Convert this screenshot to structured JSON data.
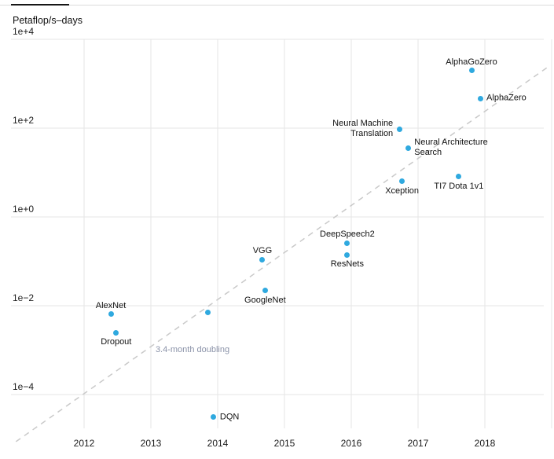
{
  "page": {
    "y_axis_title": "Petaflop/s–days"
  },
  "chart_data": {
    "type": "scatter",
    "title": "",
    "ylabel": "Petaflop/s–days",
    "xlabel": "",
    "y_scale": "log10",
    "grid": true,
    "x_axis": {
      "tick_years": [
        2012,
        2013,
        2014,
        2015,
        2016,
        2017,
        2018
      ],
      "gridline_years": [
        2012,
        2013,
        2014,
        2015,
        2016,
        2017,
        2018,
        2019
      ],
      "range": [
        2010.9,
        2019.05
      ]
    },
    "y_axis": {
      "ticks": [
        {
          "label": "1e+4",
          "exp": 4
        },
        {
          "label": "1e+2",
          "exp": 2
        },
        {
          "label": "1e+0",
          "exp": 0
        },
        {
          "label": "1e−2",
          "exp": -2
        },
        {
          "label": "1e−4",
          "exp": -4
        }
      ],
      "range_exp": [
        -4.85,
        4
      ]
    },
    "points": [
      {
        "label": "AlexNet",
        "year": 2012.4,
        "value": 0.0064,
        "label_pos": "above"
      },
      {
        "label": "Dropout",
        "year": 2012.48,
        "value": 0.0025,
        "label_pos": "below"
      },
      {
        "label": "",
        "year": 2013.85,
        "value": 0.0072,
        "label_pos": "none"
      },
      {
        "label": "DQN",
        "year": 2013.94,
        "value": 3.1e-05,
        "label_pos": "right"
      },
      {
        "label": "GoogleNet",
        "year": 2014.71,
        "value": 0.022,
        "label_pos": "below"
      },
      {
        "label": "VGG",
        "year": 2014.67,
        "value": 0.11,
        "label_pos": "above"
      },
      {
        "label": "DeepSpeech2",
        "year": 2015.94,
        "value": 0.26,
        "label_pos": "above"
      },
      {
        "label": "ResNets",
        "year": 2015.94,
        "value": 0.14,
        "label_pos": "below"
      },
      {
        "label": "Neural Machine\nTranslation",
        "year": 2016.72,
        "value": 96,
        "label_pos": "left"
      },
      {
        "label": "Neural Architecture\nSearch",
        "year": 2016.85,
        "value": 36,
        "label_pos": "right"
      },
      {
        "label": "Xception",
        "year": 2016.76,
        "value": 6.3,
        "label_pos": "below"
      },
      {
        "label": "TI7 Dota 1v1",
        "year": 2017.61,
        "value": 8.0,
        "label_pos": "below"
      },
      {
        "label": "AlphaGoZero",
        "year": 2017.8,
        "value": 1960,
        "label_pos": "above"
      },
      {
        "label": "AlphaZero",
        "year": 2017.93,
        "value": 470,
        "label_pos": "right"
      }
    ],
    "trend_line": {
      "label": "3.4-month doubling",
      "start": {
        "year": 2010.98,
        "value": 8.7e-06
      },
      "end": {
        "year": 2018.93,
        "value": 2300
      },
      "label_anchor": {
        "year": 2013.07,
        "value": 0.00098
      }
    },
    "colors": {
      "point": "#2fa9df",
      "trend": "#c9c9c9",
      "trend_label": "#8a92a8",
      "grid": "#e6e6e6",
      "text": "#111111"
    }
  }
}
